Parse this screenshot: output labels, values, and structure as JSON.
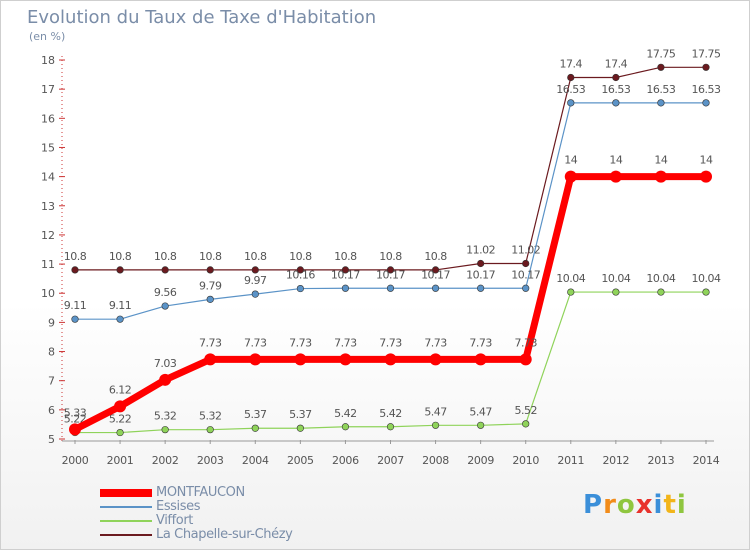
{
  "header": {
    "title": "Evolution du Taux de Taxe d'Habitation",
    "subtitle": "(en %)"
  },
  "logo": {
    "text": "Proxiti"
  },
  "chart_data": {
    "type": "line",
    "x": [
      "2000",
      "2001",
      "2002",
      "2003",
      "2004",
      "2005",
      "2006",
      "2007",
      "2008",
      "2009",
      "2010",
      "2011",
      "2012",
      "2013",
      "2014"
    ],
    "ylim": [
      5,
      18
    ],
    "yticks": [
      5,
      6,
      7,
      8,
      9,
      10,
      11,
      12,
      13,
      14,
      15,
      16,
      17,
      18
    ],
    "grid": false,
    "legend_position": "bottom-left",
    "series": [
      {
        "name": "La Chapelle-sur-Chézy",
        "color": "#6b1a1f",
        "width": 1.2,
        "values": [
          10.8,
          10.8,
          10.8,
          10.8,
          10.8,
          10.8,
          10.8,
          10.8,
          10.8,
          11.02,
          11.02,
          17.4,
          17.4,
          17.75,
          17.75
        ],
        "labels": [
          "10.8",
          "10.8",
          "10.8",
          "10.8",
          "10.8",
          "10.8",
          "10.8",
          "10.8",
          "10.8",
          "11.02",
          "11.02",
          "17.4",
          "17.4",
          "17.75",
          "17.75"
        ]
      },
      {
        "name": "Essises",
        "color": "#5b93c7",
        "width": 1.2,
        "values": [
          9.11,
          9.11,
          9.56,
          9.79,
          9.97,
          10.16,
          10.17,
          10.17,
          10.17,
          10.17,
          10.17,
          16.53,
          16.53,
          16.53,
          16.53
        ],
        "labels": [
          "9.11",
          "9.11",
          "9.56",
          "9.79",
          "9.97",
          "10.16",
          "10.17",
          "10.17",
          "10.17",
          "10.17",
          "10.17",
          "16.53",
          "16.53",
          "16.53",
          "16.53"
        ]
      },
      {
        "name": "Viffort",
        "color": "#8fd35a",
        "width": 1.2,
        "values": [
          5.22,
          5.22,
          5.32,
          5.32,
          5.37,
          5.37,
          5.42,
          5.42,
          5.47,
          5.47,
          5.52,
          10.04,
          10.04,
          10.04,
          10.04
        ],
        "labels": [
          "5.22",
          "5.22",
          "5.32",
          "5.32",
          "5.37",
          "5.37",
          "5.42",
          "5.42",
          "5.47",
          "5.47",
          "5.52",
          "10.04",
          "10.04",
          "10.04",
          "10.04"
        ]
      },
      {
        "name": "MONTFAUCON",
        "color": "#ff0000",
        "width": 7,
        "values": [
          5.33,
          6.12,
          7.03,
          7.73,
          7.73,
          7.73,
          7.73,
          7.73,
          7.73,
          7.73,
          7.73,
          14,
          14,
          14,
          14
        ],
        "labels": [
          "5.33",
          "6.12",
          "7.03",
          "7.73",
          "7.73",
          "7.73",
          "7.73",
          "7.73",
          "7.73",
          "7.73",
          "7.73",
          "14",
          "14",
          "14",
          "14"
        ]
      }
    ],
    "legend": [
      "MONTFAUCON",
      "Essises",
      "Viffort",
      "La Chapelle-sur-Chézy"
    ]
  }
}
